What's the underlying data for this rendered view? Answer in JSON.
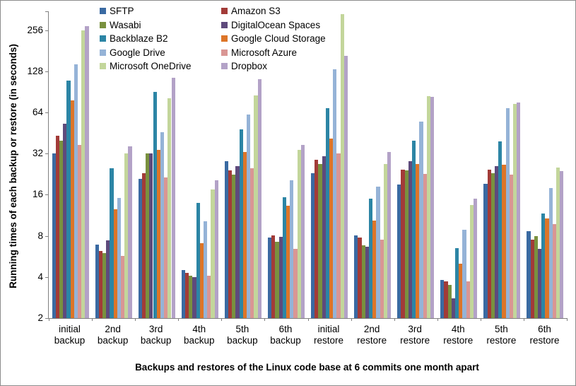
{
  "figure": {
    "y_axis": {
      "title": "Running times of each backup or restore (in seconds)",
      "tick_labels": [
        "2",
        "4",
        "8",
        "16",
        "32",
        "64",
        "128",
        "256"
      ]
    },
    "x_axis": {
      "title": "Backups and restores of the Linux code base at 6 commits one month apart"
    },
    "axis_color": "#808080",
    "background_color": "#ffffff"
  },
  "chart_data": {
    "type": "bar",
    "y_scale": "log2",
    "ylim": [
      2,
      351
    ],
    "grid": false,
    "legend_position": "top-left, two columns, row-wise order",
    "title": "",
    "xlabel": "Backups and restores of the Linux code base at 6 commits one month apart",
    "ylabel": "Running times of each backup or restore (in seconds)",
    "categories": [
      "initial backup",
      "2nd backup",
      "3rd backup",
      "4th backup",
      "5th backup",
      "6th backup",
      "initial restore",
      "2nd restore",
      "3rd restore",
      "4th restore",
      "5th restore",
      "6th restore"
    ],
    "series": [
      {
        "name": "SFTP",
        "color": "#3A6AA2",
        "values": [
          32,
          6.9,
          21,
          4.5,
          28,
          7.8,
          23,
          8.1,
          19,
          3.8,
          19.3,
          8.7
        ]
      },
      {
        "name": "Amazon S3",
        "color": "#A23B38",
        "values": [
          43,
          6.2,
          23,
          4.3,
          24,
          8.1,
          29,
          7.8,
          24.3,
          3.7,
          24.5,
          7.5
        ]
      },
      {
        "name": "Wasabi",
        "color": "#79913F",
        "values": [
          40,
          6.0,
          32,
          4.1,
          22.5,
          7.2,
          27,
          6.8,
          24,
          3.5,
          23,
          8.0
        ]
      },
      {
        "name": "DigitalOcean Spaces",
        "color": "#5E4A7C",
        "values": [
          53,
          7.4,
          32,
          4.0,
          26,
          7.9,
          30.5,
          6.7,
          28,
          2.8,
          26,
          6.4
        ]
      },
      {
        "name": "Backblaze B2",
        "color": "#2C85A5",
        "values": [
          109,
          25,
          90,
          14,
          48,
          15.3,
          69,
          15,
          40,
          6.5,
          39.5,
          11.6
        ]
      },
      {
        "name": "Google Cloud Storage",
        "color": "#DD7528",
        "values": [
          78,
          12.5,
          34,
          7.1,
          33,
          13.3,
          41,
          10.3,
          27,
          5.0,
          26.6,
          10.7
        ]
      },
      {
        "name": "Google Drive",
        "color": "#95B3D7",
        "values": [
          144,
          15.2,
          46,
          10.2,
          62,
          20.5,
          132,
          18.4,
          55,
          8.9,
          69,
          17.9
        ]
      },
      {
        "name": "Microsoft Azure",
        "color": "#D99694",
        "values": [
          37,
          5.7,
          21.5,
          4.1,
          25,
          6.4,
          32,
          7.5,
          22.6,
          3.7,
          22.5,
          9.7
        ]
      },
      {
        "name": "Microsoft OneDrive",
        "color": "#C3D69B",
        "values": [
          254,
          32,
          81,
          17.5,
          85,
          34,
          337,
          27,
          84,
          13.4,
          74,
          25.2
        ]
      },
      {
        "name": "Dropbox",
        "color": "#B3A2C7",
        "values": [
          275,
          36,
          115,
          20.3,
          112,
          37,
          166,
          32.7,
          83,
          15,
          76,
          23.8
        ]
      }
    ]
  }
}
